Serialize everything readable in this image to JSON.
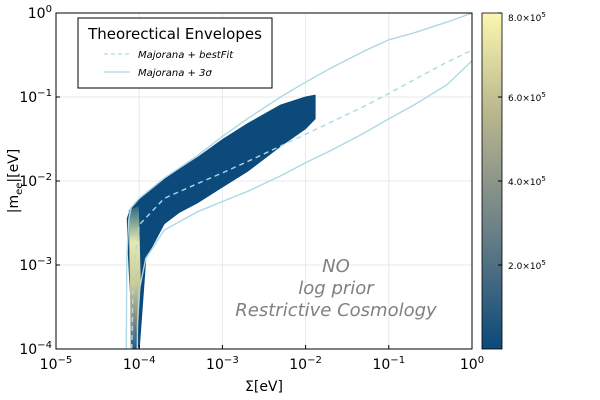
{
  "chart_data": {
    "type": "scatter",
    "title": "",
    "xlabel": "Σ[eV]",
    "ylabel": "|m_ee|[eV]",
    "xscale": "log",
    "yscale": "log",
    "xlim": [
      1e-05,
      1
    ],
    "ylim": [
      0.0001,
      1
    ],
    "x_ticks": [
      {
        "value": 1e-05,
        "base": "10",
        "exp": "−5"
      },
      {
        "value": 0.0001,
        "base": "10",
        "exp": "−4"
      },
      {
        "value": 0.001,
        "base": "10",
        "exp": "−3"
      },
      {
        "value": 0.01,
        "base": "10",
        "exp": "−2"
      },
      {
        "value": 0.1,
        "base": "10",
        "exp": "−1"
      },
      {
        "value": 1,
        "base": "10",
        "exp": "0"
      }
    ],
    "y_ticks": [
      {
        "value": 0.0001,
        "base": "10",
        "exp": "−4"
      },
      {
        "value": 0.001,
        "base": "10",
        "exp": "−3"
      },
      {
        "value": 0.01,
        "base": "10",
        "exp": "−2"
      },
      {
        "value": 0.1,
        "base": "10",
        "exp": "−1"
      },
      {
        "value": 1,
        "base": "10",
        "exp": "0"
      }
    ],
    "grid": true,
    "legend": {
      "title": "Theorectical Envelopes",
      "placement": "top-left",
      "entries": [
        {
          "label": "Majorana + bestFit",
          "style": "dashed",
          "color": "#add8e6"
        },
        {
          "label": "Majorana + 3σ",
          "style": "solid",
          "color": "#add8e6"
        }
      ]
    },
    "series": [
      {
        "name": "Majorana + bestFit",
        "style": "dashed",
        "x": [
          8.15e-05,
          8.5e-05,
          0.0001,
          0.0002,
          0.0005,
          0.001,
          0.002,
          0.005,
          0.01,
          0.02,
          0.05,
          0.1,
          0.2,
          0.5,
          1
        ],
        "y": [
          0.0001,
          0.0008,
          0.003,
          0.0062,
          0.0093,
          0.0125,
          0.017,
          0.026,
          0.036,
          0.05,
          0.077,
          0.11,
          0.16,
          0.26,
          0.36
        ]
      },
      {
        "name": "Majorana + 3σ",
        "style": "solid",
        "x": [
          7e-05,
          7.1e-05,
          7.5e-05,
          8e-05,
          0.0001,
          0.0002,
          0.0005,
          0.001,
          0.002,
          0.005,
          0.01,
          0.02,
          0.05,
          0.1,
          0.2,
          0.5,
          1
        ],
        "y": [
          0.0001,
          0.0012,
          0.0035,
          0.0048,
          0.0062,
          0.0108,
          0.02,
          0.034,
          0.055,
          0.1,
          0.15,
          0.22,
          0.35,
          0.48,
          0.58,
          0.78,
          1
        ]
      },
      {
        "name": "Majorana + 3σ",
        "style": "solid",
        "x": [
          9.5e-05,
          9.55e-05,
          0.0001,
          0.00012,
          0.0002,
          0.0005,
          0.001,
          0.002,
          0.005,
          0.01,
          0.02,
          0.05,
          0.1,
          0.2,
          0.5,
          1
        ],
        "y": [
          0.0001,
          0.0002,
          0.0005,
          0.0012,
          0.0026,
          0.0043,
          0.0057,
          0.0075,
          0.0115,
          0.0165,
          0.023,
          0.037,
          0.055,
          0.08,
          0.14,
          0.27
        ]
      }
    ],
    "density_region": {
      "color_scale": "density",
      "upper_boundary": {
        "x": [
          7.2e-05,
          8e-05,
          0.0001,
          0.0002,
          0.0005,
          0.001,
          0.002,
          0.005,
          0.01,
          0.013
        ],
        "y": [
          0.0036,
          0.0048,
          0.006,
          0.0105,
          0.019,
          0.031,
          0.048,
          0.08,
          0.1,
          0.105
        ]
      },
      "lower_boundary": {
        "x": [
          7.2e-05,
          7.3e-05,
          7.6e-05,
          8e-05,
          9e-05,
          0.0001,
          0.00012,
          0.0002,
          0.0003,
          0.0005,
          0.001,
          0.002,
          0.005,
          0.01,
          0.013
        ],
        "y": [
          0.0036,
          0.0018,
          0.0008,
          0.00035,
          0.00015,
          0.0001,
          0.0012,
          0.0031,
          0.0042,
          0.0055,
          0.0085,
          0.013,
          0.026,
          0.042,
          0.055
        ]
      },
      "bright_band_x": [
        7.5e-05,
        0.000105
      ]
    },
    "colorbar": {
      "colors": [
        "#0b4a7a",
        "#6b7f86",
        "#b8b68e",
        "#fbf7b0"
      ],
      "range": [
        0,
        800000
      ],
      "ticks": [
        {
          "value": 200000,
          "label": "2.0×10",
          "exp": "5"
        },
        {
          "value": 400000,
          "label": "4.0×10",
          "exp": "5"
        },
        {
          "value": 600000,
          "label": "6.0×10",
          "exp": "5"
        },
        {
          "value": 800000,
          "label": "8.0×10",
          "exp": "5"
        }
      ]
    },
    "annotations": [
      "NO",
      "log prior",
      "Restrictive Cosmology"
    ],
    "colors": {
      "envelope": "#add8e6",
      "annotation": "#808080",
      "grid": "#e8e8e8"
    }
  }
}
